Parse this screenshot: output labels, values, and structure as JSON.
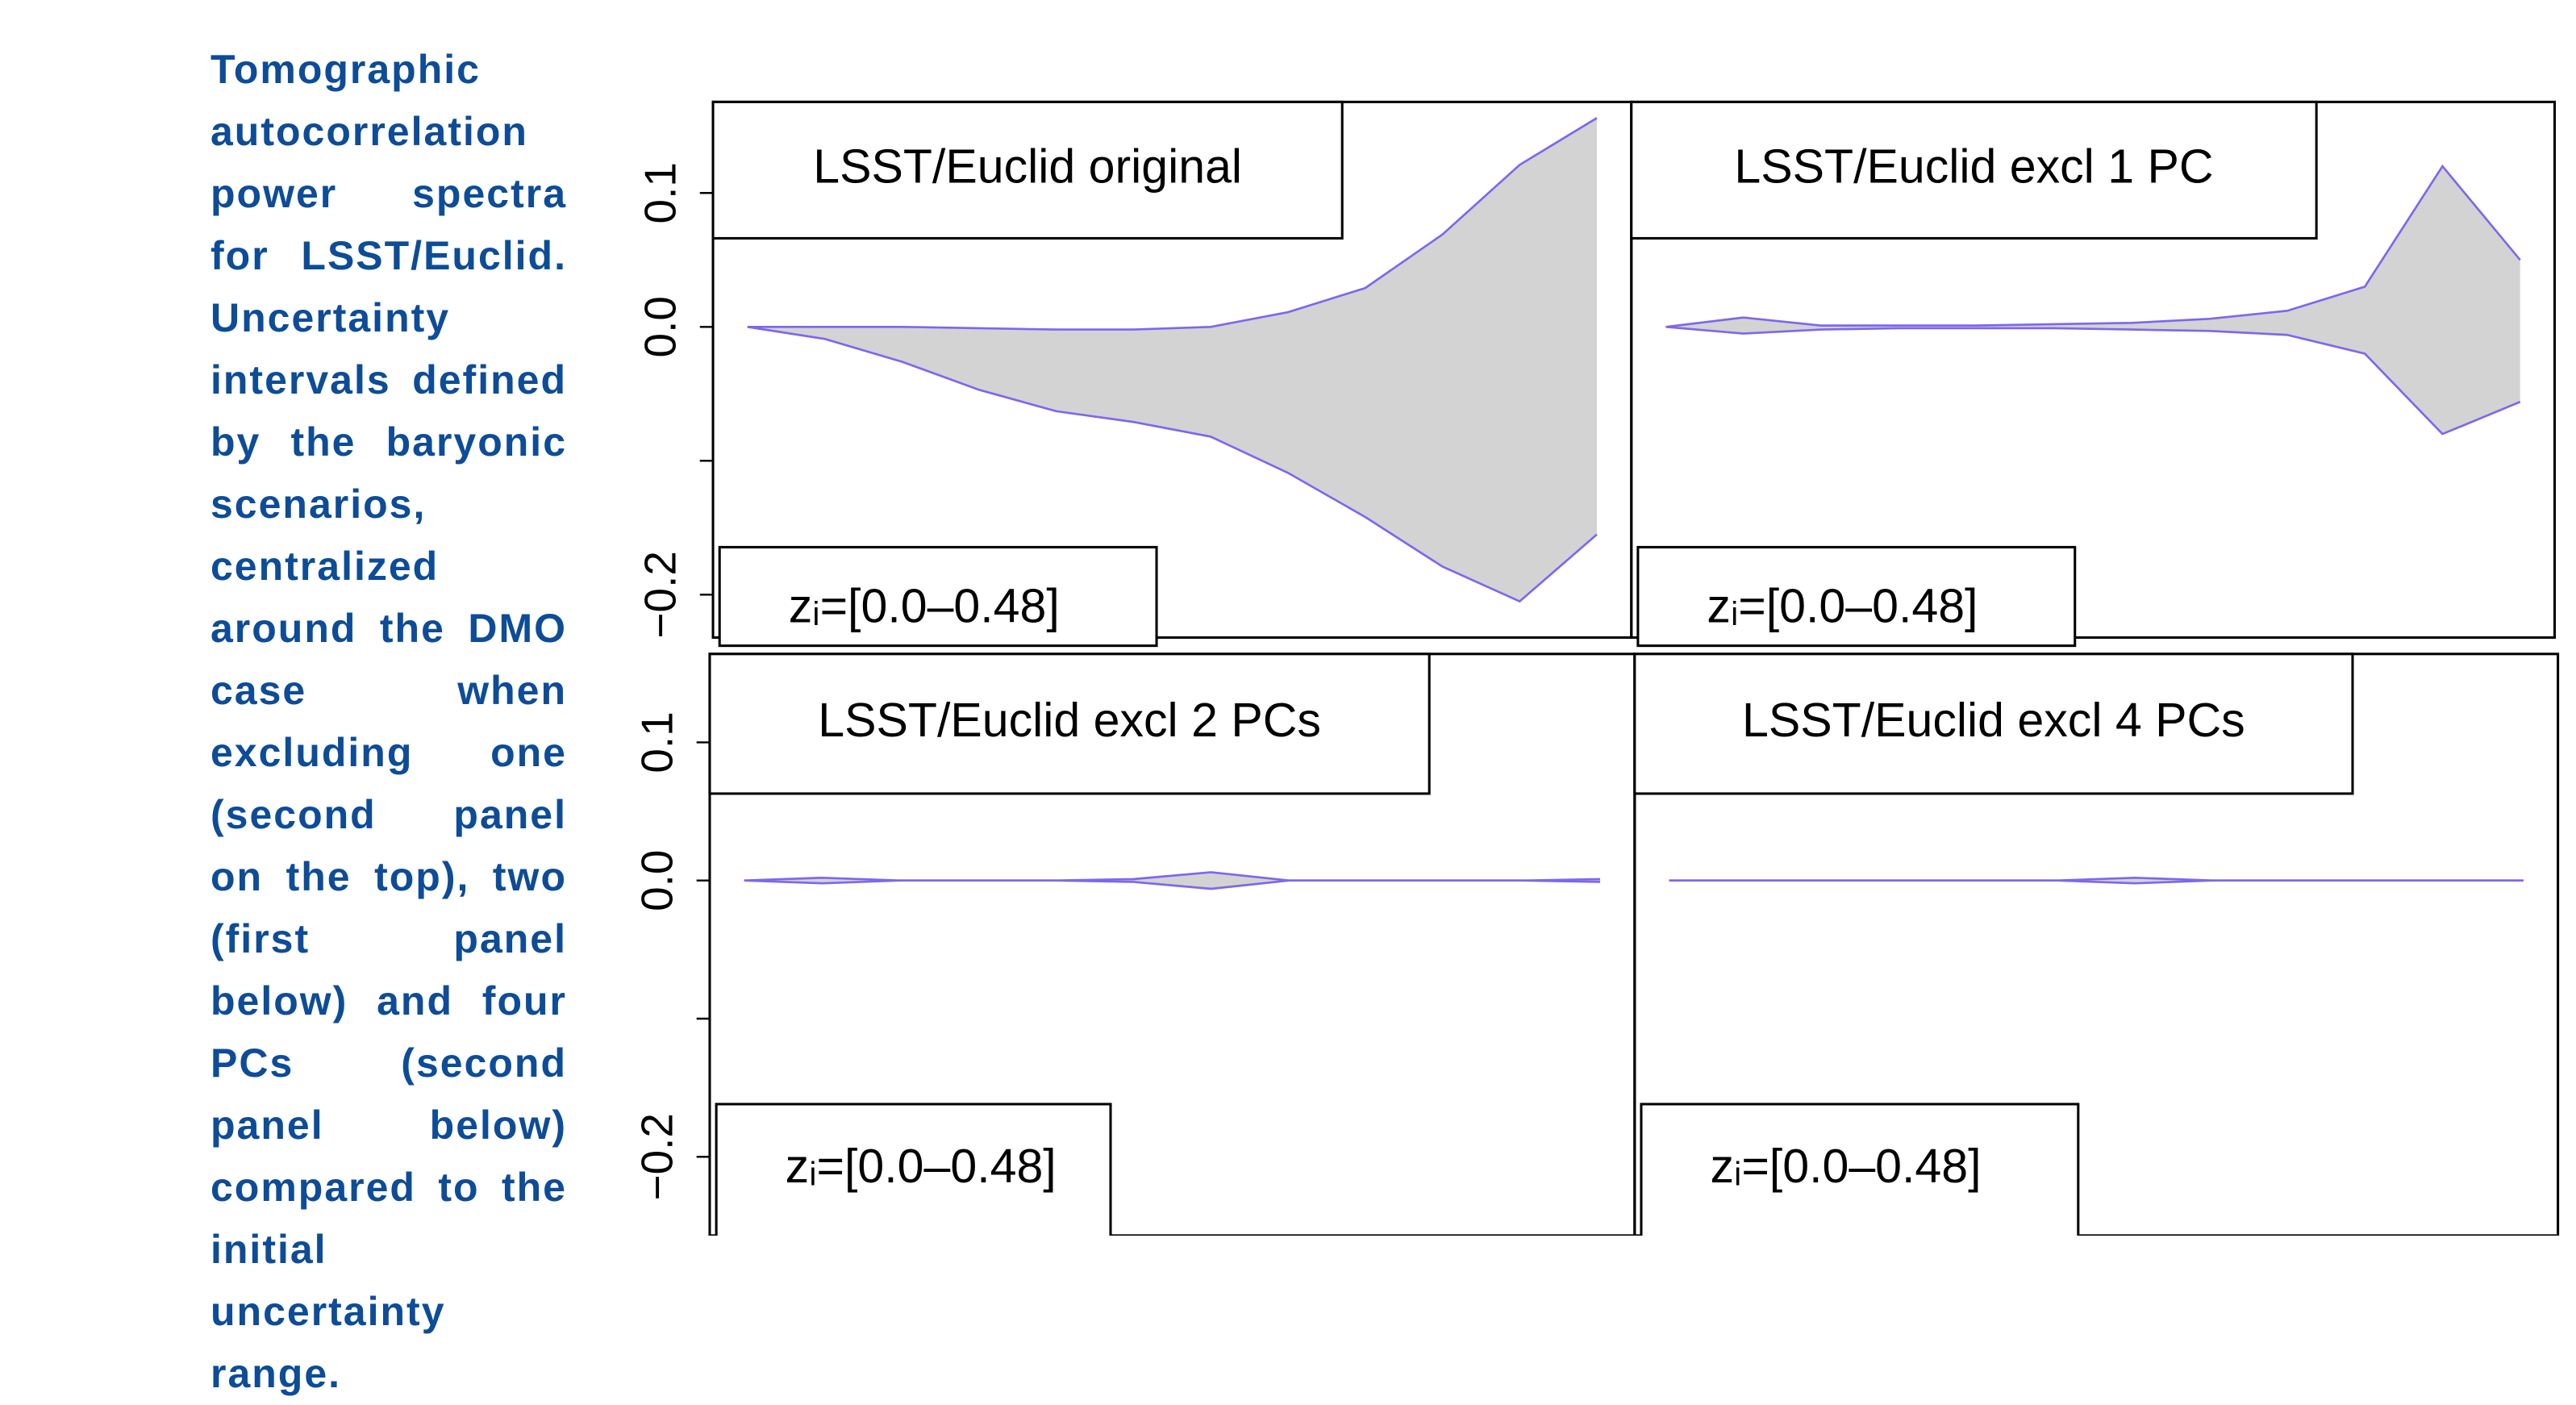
{
  "caption": "Tomographic autocorrelation power spectra for LSST/Euclid. Uncertainty intervals defined by the baryonic scenarios, centralized around the DMO case when excluding one (second panel on the top), two (first panel below) and four PCs (second panel below) compared to the initial uncertainty range.",
  "chart_data": [
    {
      "type": "band",
      "title": "LSST/Euclid original",
      "annotation": "zᵢ=[0.0–0.48]",
      "upper": [
        0,
        0,
        0,
        -0.001,
        -0.002,
        -0.002,
        0,
        0.011,
        0.029,
        0.069,
        0.121,
        0.156
      ],
      "lower": [
        0,
        -0.009,
        -0.026,
        -0.047,
        -0.063,
        -0.071,
        -0.082,
        -0.109,
        -0.142,
        -0.179,
        -0.205,
        -0.155
      ],
      "color": "#7b68ee",
      "fill": "#d3d3d3",
      "ylim": [
        -0.232,
        0.168
      ],
      "yticks": [
        {
          "value": -0.2,
          "label": "−0.2"
        },
        {
          "value": -0.1,
          "label": null
        },
        {
          "value": 0,
          "label": "0.0"
        },
        0.1
      ]
    },
    {
      "type": "band",
      "title": "LSST/Euclid excl 1 PC",
      "annotation": "zᵢ=[0.0–0.48]",
      "upper": [
        0,
        0.007,
        0.001,
        0.001,
        0.001,
        0.002,
        0.003,
        0.006,
        0.012,
        0.03,
        0.12,
        0.05
      ],
      "lower": [
        0,
        -0.005,
        -0.002,
        -0.001,
        -0.001,
        -0.001,
        -0.002,
        -0.003,
        -0.006,
        -0.02,
        -0.08,
        -0.056
      ],
      "color": "#7b68ee",
      "fill": "#d3d3d3",
      "ylim": [
        -0.232,
        0.168
      ]
    },
    {
      "type": "band",
      "title": "LSST/Euclid excl 2 PCs",
      "annotation": "zᵢ=[0.0–0.48]",
      "upper": [
        0,
        0.002,
        0,
        0,
        0,
        0.001,
        0.006,
        0,
        0,
        0,
        0,
        0.001
      ],
      "lower": [
        0,
        -0.002,
        0,
        0,
        0,
        -0.001,
        -0.006,
        0,
        0,
        0,
        0,
        -0.001
      ],
      "color": "#7b68ee",
      "fill": "#d3d3d3",
      "ylim": [
        -0.257,
        0.164
      ],
      "yticks": [
        {
          "value": -0.2,
          "label": "−0.2"
        },
        {
          "value": -0.1,
          "label": null
        },
        {
          "value": 0,
          "label": "0.0"
        },
        0.1
      ]
    },
    {
      "type": "band",
      "title": "LSST/Euclid excl 4 PCs",
      "annotation": "zᵢ=[0.0–0.48]",
      "upper": [
        0,
        0,
        0,
        0,
        0,
        0,
        0.002,
        0,
        0,
        0,
        0,
        0
      ],
      "lower": [
        0,
        0,
        0,
        0,
        0,
        0,
        -0.002,
        0,
        0,
        0,
        0,
        0
      ],
      "color": "#7b68ee",
      "fill": "#d3d3d3",
      "ylim": [
        -0.257,
        0.164
      ]
    }
  ]
}
